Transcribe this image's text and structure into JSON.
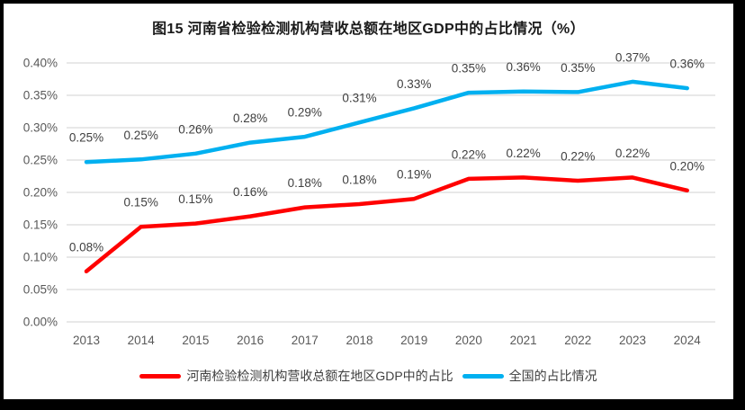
{
  "chart_data": {
    "type": "line",
    "title": "图15  河南省检验检测机构营收总额在地区GDP中的占比情况（%）",
    "categories": [
      "2013",
      "2014",
      "2015",
      "2016",
      "2017",
      "2018",
      "2019",
      "2020",
      "2021",
      "2022",
      "2023",
      "2024"
    ],
    "y_axis": {
      "min": 0,
      "max": 0.4,
      "step": 0.05,
      "tick_labels": [
        "0.00%",
        "0.05%",
        "0.10%",
        "0.15%",
        "0.20%",
        "0.25%",
        "0.30%",
        "0.35%",
        "0.40%"
      ]
    },
    "grid": true,
    "legend_position": "bottom",
    "series": [
      {
        "name": "河南检验检测机构营收总额在地区GDP中的占比",
        "color": "#FF0000",
        "values": [
          0.078,
          0.147,
          0.152,
          0.163,
          0.177,
          0.182,
          0.19,
          0.221,
          0.223,
          0.218,
          0.223,
          0.203
        ],
        "labels": [
          "0.08%",
          "0.15%",
          "0.15%",
          "0.16%",
          "0.18%",
          "0.18%",
          "0.19%",
          "0.22%",
          "0.22%",
          "0.22%",
          "0.22%",
          "0.20%"
        ]
      },
      {
        "name": "全国的占比情况",
        "color": "#00B0F0",
        "values": [
          0.247,
          0.251,
          0.26,
          0.277,
          0.286,
          0.308,
          0.33,
          0.354,
          0.356,
          0.355,
          0.371,
          0.361
        ],
        "labels": [
          "0.25%",
          "0.25%",
          "0.26%",
          "0.28%",
          "0.29%",
          "0.31%",
          "0.33%",
          "0.35%",
          "0.36%",
          "0.35%",
          "0.37%",
          "0.36%"
        ]
      }
    ],
    "style": {
      "grid_color": "#D9D9D9",
      "axis_text_color": "#595959",
      "data_label_color": "#404040",
      "frame_color": "#000000",
      "background": "#FFFFFF"
    }
  }
}
